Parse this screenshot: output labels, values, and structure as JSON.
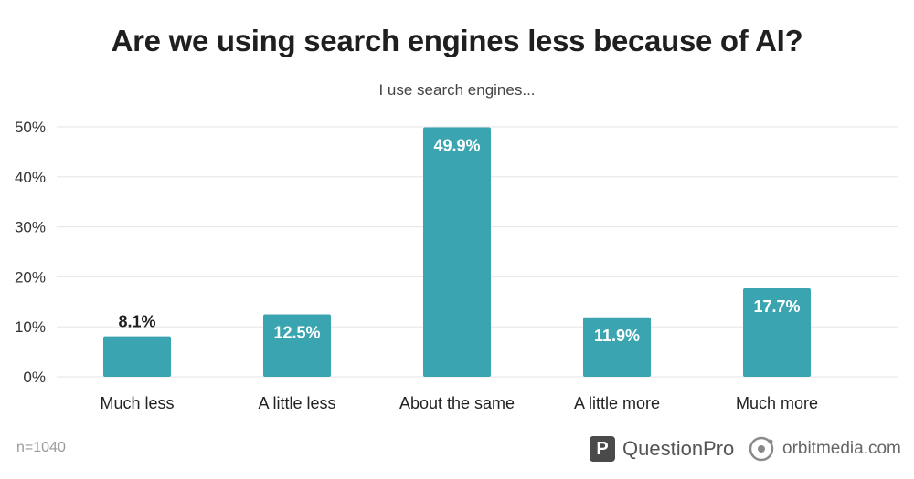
{
  "chart_data": {
    "type": "bar",
    "title": "Are we using search engines less because of AI?",
    "subtitle": "I use search engines...",
    "categories": [
      "Much less",
      "A little less",
      "About the same",
      "A little more",
      "Much more"
    ],
    "values": [
      8.1,
      12.5,
      49.9,
      11.9,
      17.7
    ],
    "value_labels": [
      "8.1%",
      "12.5%",
      "49.9%",
      "11.9%",
      "17.7%"
    ],
    "yticks": [
      0,
      10,
      20,
      30,
      40,
      50
    ],
    "ytick_labels": [
      "0%",
      "10%",
      "20%",
      "30%",
      "40%",
      "50%"
    ],
    "ylim": [
      0,
      50
    ],
    "grid": true,
    "colors": {
      "bar": "#3aa5b1",
      "grid": "#e6e6e6",
      "label_dark": "#1f1f1f",
      "label_light": "#ffffff"
    }
  },
  "footer": {
    "sample_size": "n=1040",
    "logo_questionpro": "QuestionPro",
    "logo_questionpro_icon": "P",
    "logo_orbitmedia": "orbitmedia.com"
  }
}
